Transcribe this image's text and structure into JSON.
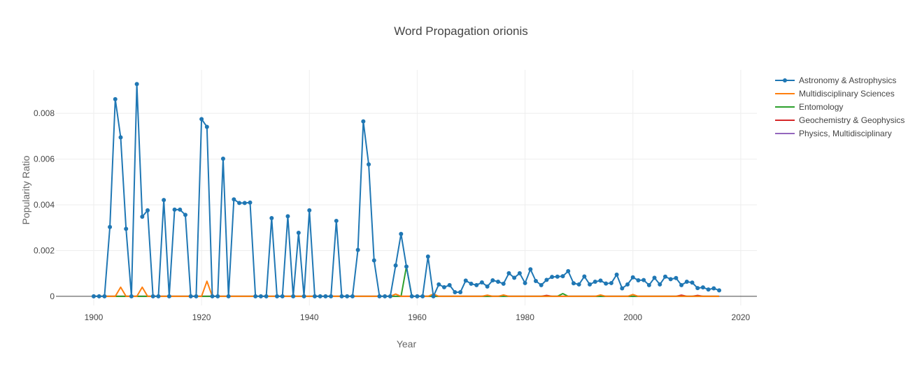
{
  "chart_data": {
    "type": "line",
    "title": "Word Propagation orionis",
    "xlabel": "Year",
    "ylabel": "Popularity Ratio",
    "xlim": [
      1893,
      2023
    ],
    "ylim": [
      -0.0004,
      0.0099
    ],
    "x_ticks": [
      1900,
      1920,
      1940,
      1960,
      1980,
      2000,
      2020
    ],
    "x_tick_labels": [
      "1900",
      "1920",
      "1940",
      "1960",
      "1980",
      "2000",
      "2020"
    ],
    "y_ticks": [
      0,
      0.002,
      0.004,
      0.006,
      0.008
    ],
    "y_tick_labels": [
      "0",
      "0.002",
      "0.004",
      "0.006",
      "0.008"
    ],
    "grid": true,
    "legend_position": "top-right",
    "series": [
      {
        "name": "Astronomy & Astrophysics",
        "color": "#1f77b4",
        "markers": true,
        "points": [
          [
            1900,
            0
          ],
          [
            1901,
            0
          ],
          [
            1902,
            0
          ],
          [
            1903,
            0.00303
          ],
          [
            1904,
            0.00862
          ],
          [
            1905,
            0.00695
          ],
          [
            1906,
            0.00295
          ],
          [
            1907,
            0
          ],
          [
            1908,
            0.00928
          ],
          [
            1909,
            0.00348
          ],
          [
            1910,
            0.00376
          ],
          [
            1911,
            0
          ],
          [
            1912,
            0
          ],
          [
            1913,
            0.00421
          ],
          [
            1914,
            0
          ],
          [
            1915,
            0.00379
          ],
          [
            1916,
            0.00379
          ],
          [
            1917,
            0.00356
          ],
          [
            1918,
            0
          ],
          [
            1919,
            0
          ],
          [
            1920,
            0.00775
          ],
          [
            1921,
            0.00741
          ],
          [
            1922,
            0
          ],
          [
            1923,
            0
          ],
          [
            1924,
            0.00602
          ],
          [
            1925,
            0
          ],
          [
            1926,
            0.00424
          ],
          [
            1927,
            0.00408
          ],
          [
            1928,
            0.00408
          ],
          [
            1929,
            0.0041
          ],
          [
            1930,
            0
          ],
          [
            1931,
            0
          ],
          [
            1932,
            0
          ],
          [
            1933,
            0.00342
          ],
          [
            1934,
            0
          ],
          [
            1935,
            0
          ],
          [
            1936,
            0.0035
          ],
          [
            1937,
            0
          ],
          [
            1938,
            0.00278
          ],
          [
            1939,
            0
          ],
          [
            1940,
            0.00376
          ],
          [
            1941,
            0
          ],
          [
            1942,
            0
          ],
          [
            1943,
            0
          ],
          [
            1944,
            0
          ],
          [
            1945,
            0.0033
          ],
          [
            1946,
            0
          ],
          [
            1947,
            0
          ],
          [
            1948,
            0
          ],
          [
            1949,
            0.00203
          ],
          [
            1950,
            0.00765
          ],
          [
            1951,
            0.00577
          ],
          [
            1952,
            0.00157
          ],
          [
            1953,
            0
          ],
          [
            1954,
            0
          ],
          [
            1955,
            0
          ],
          [
            1956,
            0.00135
          ],
          [
            1957,
            0.00273
          ],
          [
            1958,
            0.0013
          ],
          [
            1959,
            0
          ],
          [
            1960,
            0
          ],
          [
            1961,
            0
          ],
          [
            1962,
            0.00174
          ],
          [
            1963,
            0
          ],
          [
            1964,
            0.00052
          ],
          [
            1965,
            0.0004
          ],
          [
            1966,
            0.00049
          ],
          [
            1967,
            0.00018
          ],
          [
            1968,
            0.00018
          ],
          [
            1969,
            0.00069
          ],
          [
            1970,
            0.00055
          ],
          [
            1971,
            0.00049
          ],
          [
            1972,
            0.00061
          ],
          [
            1973,
            0.00043
          ],
          [
            1974,
            0.0007
          ],
          [
            1975,
            0.00064
          ],
          [
            1976,
            0.00055
          ],
          [
            1977,
            0.00101
          ],
          [
            1978,
            0.00081
          ],
          [
            1979,
            0.00101
          ],
          [
            1980,
            0.00058
          ],
          [
            1981,
            0.00118
          ],
          [
            1982,
            0.00067
          ],
          [
            1983,
            0.00049
          ],
          [
            1984,
            0.00072
          ],
          [
            1985,
            0.00085
          ],
          [
            1986,
            0.00086
          ],
          [
            1987,
            0.00088
          ],
          [
            1988,
            0.0011
          ],
          [
            1989,
            0.00057
          ],
          [
            1990,
            0.00052
          ],
          [
            1991,
            0.00087
          ],
          [
            1992,
            0.00052
          ],
          [
            1993,
            0.00064
          ],
          [
            1994,
            0.00069
          ],
          [
            1995,
            0.00056
          ],
          [
            1996,
            0.00058
          ],
          [
            1997,
            0.00095
          ],
          [
            1998,
            0.00035
          ],
          [
            1999,
            0.00052
          ],
          [
            2000,
            0.00083
          ],
          [
            2001,
            0.0007
          ],
          [
            2002,
            0.00071
          ],
          [
            2003,
            0.00049
          ],
          [
            2004,
            0.00081
          ],
          [
            2005,
            0.00052
          ],
          [
            2006,
            0.00086
          ],
          [
            2007,
            0.00075
          ],
          [
            2008,
            0.0008
          ],
          [
            2009,
            0.00049
          ],
          [
            2010,
            0.00064
          ],
          [
            2011,
            0.0006
          ],
          [
            2012,
            0.00036
          ],
          [
            2013,
            0.00039
          ],
          [
            2014,
            0.0003
          ],
          [
            2015,
            0.00035
          ],
          [
            2016,
            0.00026
          ]
        ]
      },
      {
        "name": "Multidisciplinary Sciences",
        "color": "#ff7f0e",
        "markers": false,
        "points": [
          [
            1900,
            0
          ],
          [
            1904,
            0
          ],
          [
            1905,
            0.0004
          ],
          [
            1906,
            0
          ],
          [
            1908,
            0
          ],
          [
            1909,
            0.0004
          ],
          [
            1910,
            0
          ],
          [
            1920,
            0
          ],
          [
            1921,
            0.00066
          ],
          [
            1922,
            0
          ],
          [
            1955,
            0
          ],
          [
            1956,
            0.0001
          ],
          [
            1957,
            0
          ],
          [
            1962,
            0
          ],
          [
            1963,
            0.0001
          ],
          [
            1964,
            0
          ],
          [
            1972,
            0
          ],
          [
            1973,
            5e-05
          ],
          [
            1974,
            0
          ],
          [
            1975,
            0
          ],
          [
            1976,
            6e-05
          ],
          [
            1977,
            0
          ],
          [
            1993,
            0
          ],
          [
            1994,
            6e-05
          ],
          [
            1995,
            0
          ],
          [
            1999,
            0
          ],
          [
            2000,
            8e-05
          ],
          [
            2001,
            0
          ],
          [
            2016,
            0
          ]
        ]
      },
      {
        "name": "Entomology",
        "color": "#2ca02c",
        "markers": false,
        "points": [
          [
            1900,
            0
          ],
          [
            1957,
            0
          ],
          [
            1958,
            0.0013
          ],
          [
            1959,
            0
          ],
          [
            1986,
            0
          ],
          [
            1987,
            0.00012
          ],
          [
            1988,
            0
          ],
          [
            2016,
            0
          ]
        ]
      },
      {
        "name": "Geochemistry & Geophysics",
        "color": "#d62728",
        "markers": false,
        "points": [
          [
            1900,
            0
          ],
          [
            1975,
            0
          ],
          [
            1976,
            4e-05
          ],
          [
            1977,
            0
          ],
          [
            1983,
            0
          ],
          [
            1984,
            4e-05
          ],
          [
            1985,
            0
          ],
          [
            2008,
            0
          ],
          [
            2009,
            5e-05
          ],
          [
            2010,
            0
          ],
          [
            2011,
            0
          ],
          [
            2012,
            4e-05
          ],
          [
            2013,
            0
          ],
          [
            2016,
            0
          ]
        ]
      },
      {
        "name": "Physics, Multidisciplinary",
        "color": "#9467bd",
        "markers": false,
        "points": [
          [
            1900,
            0
          ],
          [
            2016,
            0
          ]
        ]
      }
    ]
  }
}
